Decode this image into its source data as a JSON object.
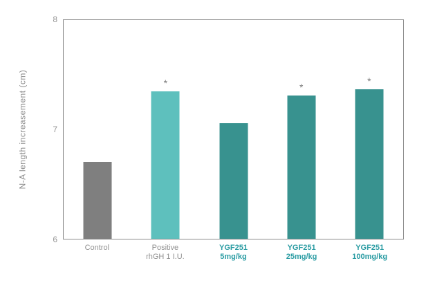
{
  "chart_data": {
    "type": "bar",
    "title": "",
    "xlabel": "",
    "ylabel": "N-A length increasement (cm)",
    "ylim": [
      6,
      8
    ],
    "yticks": [
      6,
      7,
      8
    ],
    "grid": false,
    "legend": "none",
    "categories": [
      [
        "Control"
      ],
      [
        "Positive",
        "rhGH 1 I.U."
      ],
      [
        "YGF251",
        "5mg/kg"
      ],
      [
        "YGF251",
        "25mg/kg"
      ],
      [
        "YGF251",
        "100mg/kg"
      ]
    ],
    "values": [
      6.7,
      7.35,
      7.06,
      7.31,
      7.37
    ],
    "significance": [
      "",
      "*",
      "",
      "*",
      "*"
    ],
    "bar_colors": [
      "#7f7f7f",
      "#5ec0bd",
      "#38928f",
      "#38928f",
      "#38928f"
    ],
    "label_colors": [
      "#909090",
      "#909090",
      "#2b9ca3",
      "#2b9ca3",
      "#2b9ca3"
    ],
    "label_bold": [
      false,
      false,
      true,
      true,
      true
    ]
  },
  "colors": {
    "axis_border": "#8a8a8a",
    "tick_label": "#979797",
    "axis_title": "#8a8a8a",
    "significance_star": "#7b7b7b",
    "background": "#ffffff"
  }
}
